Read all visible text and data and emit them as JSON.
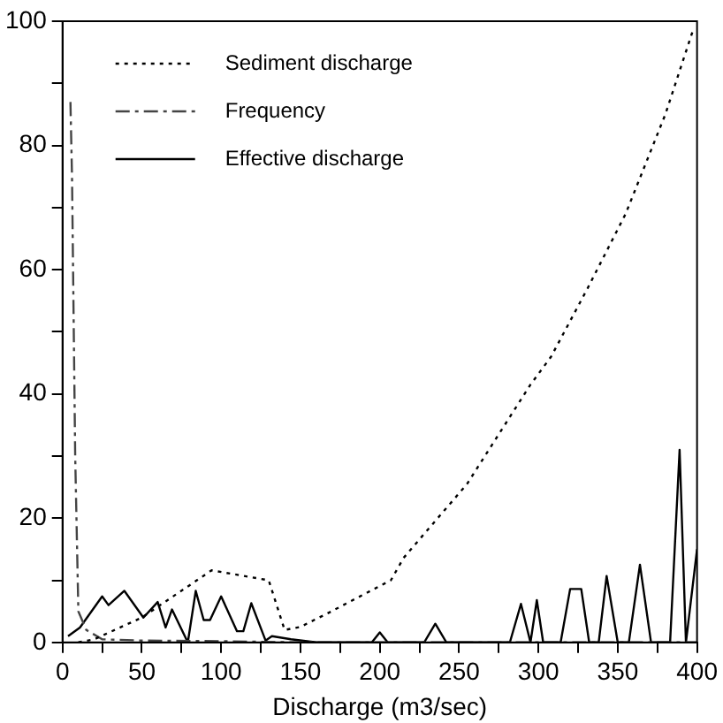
{
  "chart_data": {
    "type": "line",
    "xlabel": "Discharge (m3/sec)",
    "xlim": [
      0,
      400
    ],
    "ylim": [
      0,
      100
    ],
    "xticks": [
      0,
      {
        "value": 25,
        "label": null
      },
      50,
      {
        "value": 75,
        "label": null
      },
      100,
      {
        "value": 125,
        "label": null
      },
      150,
      {
        "value": 175,
        "label": null
      },
      200,
      {
        "value": 225,
        "label": null
      },
      250,
      {
        "value": 275,
        "label": null
      },
      300,
      {
        "value": 325,
        "label": null
      },
      350,
      {
        "value": 375,
        "label": null
      },
      400
    ],
    "yticks": [
      0,
      {
        "value": 10,
        "label": null
      },
      20,
      {
        "value": 30,
        "label": null
      },
      40,
      {
        "value": 50,
        "label": null
      },
      60,
      {
        "value": 70,
        "label": null
      },
      80,
      {
        "value": 90,
        "label": null
      },
      100
    ],
    "grid": false,
    "legend": "top left",
    "marker": "none",
    "series": [
      {
        "name": "Sediment discharge",
        "color": "#000000",
        "line_style": "dotted",
        "x": [
          10,
          20,
          50,
          94,
          130,
          140,
          150,
          168,
          207,
          215,
          255,
          295,
          308,
          331,
          355,
          380,
          398
        ],
        "values": [
          0,
          0.5,
          4,
          11.6,
          10,
          2,
          2.5,
          4.8,
          10,
          13.6,
          25.5,
          41.5,
          46,
          57,
          69,
          85,
          99
        ]
      },
      {
        "name": "Frequency",
        "color": "#444444",
        "line_style": "dashdot",
        "x": [
          5,
          6,
          8,
          10,
          15,
          25,
          50,
          100,
          150,
          400
        ],
        "values": [
          87,
          75,
          30,
          5,
          2,
          0.5,
          0.3,
          0.2,
          0,
          0
        ]
      },
      {
        "name": "Effective discharge",
        "color": "#000000",
        "line_style": "solid",
        "x": [
          3.5,
          11,
          25,
          29,
          39,
          51,
          60,
          65,
          69,
          79,
          84,
          89,
          93,
          100,
          110,
          114,
          119,
          128,
          132,
          144,
          160,
          195,
          200,
          205,
          228,
          235,
          242,
          282,
          289,
          295,
          299,
          303,
          314,
          320,
          327,
          332,
          338,
          343,
          350,
          357,
          364,
          371,
          383,
          389,
          393,
          400
        ],
        "values": [
          1,
          2.4,
          7.4,
          6,
          8.3,
          4,
          6.5,
          2.4,
          5.3,
          0,
          8.3,
          3.6,
          3.6,
          7.4,
          1.8,
          1.8,
          6.3,
          0.3,
          1,
          0.5,
          0,
          0,
          1.6,
          0,
          0,
          3,
          0,
          0,
          6.2,
          0,
          6.8,
          0,
          0,
          8.6,
          8.6,
          0,
          0,
          10.7,
          0,
          0,
          12.5,
          0,
          0,
          31,
          0,
          15
        ]
      }
    ]
  }
}
